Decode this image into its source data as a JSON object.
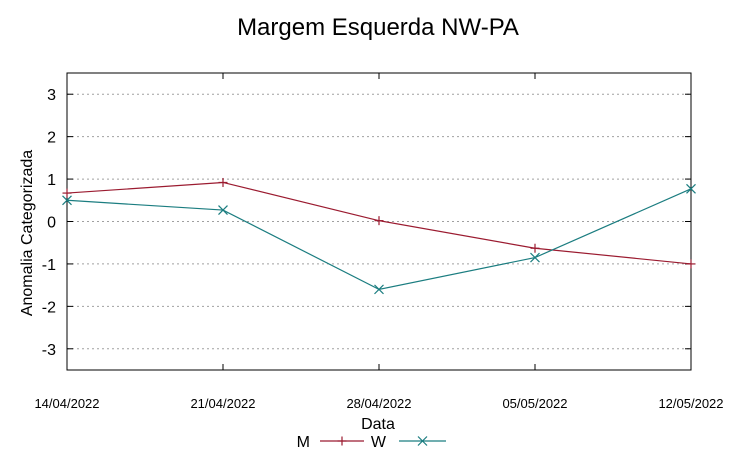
{
  "chart_data": {
    "type": "line",
    "title": "Margem Esquerda NW-PA",
    "xlabel": "Data",
    "ylabel": "Anomalia Categorizada",
    "x": [
      "14/04/2022",
      "21/04/2022",
      "28/04/2022",
      "05/05/2022",
      "12/05/2022"
    ],
    "ylim": [
      -3.5,
      3.5
    ],
    "yticks": [
      "3",
      "2",
      "1",
      "0",
      "-1",
      "-2",
      "-3"
    ],
    "ytick_values": [
      3,
      2,
      1,
      0,
      -1,
      -2,
      -3
    ],
    "grid": true,
    "legend_position": "bottom",
    "series": [
      {
        "name": "M",
        "color": "#9b1b30",
        "marker": "+",
        "values": [
          0.67,
          0.92,
          0.02,
          -0.63,
          -1.0
        ]
      },
      {
        "name": "W",
        "color": "#1b7d80",
        "marker": "x",
        "values": [
          0.5,
          0.27,
          -1.6,
          -0.85,
          0.77
        ]
      }
    ]
  }
}
